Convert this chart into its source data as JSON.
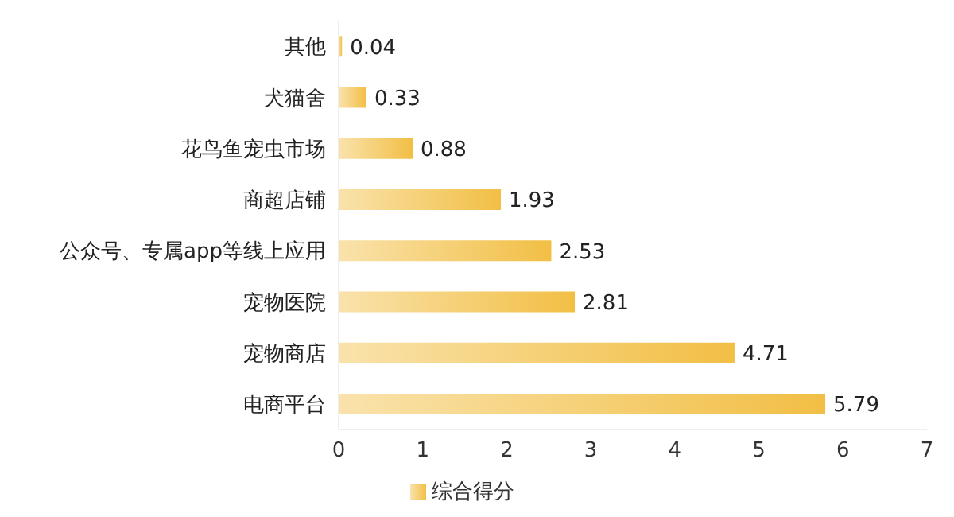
{
  "chart_data": {
    "type": "bar",
    "orientation": "horizontal",
    "categories": [
      "其他",
      "犬猫舍",
      "花鸟鱼宠虫市场",
      "商超店铺",
      "公众号、专属app等线上应用",
      "宠物医院",
      "宠物商店",
      "电商平台"
    ],
    "series": [
      {
        "name": "综合得分",
        "color": "#f2bf45",
        "values": [
          0.04,
          0.33,
          0.88,
          1.93,
          2.53,
          2.81,
          4.71,
          5.79
        ]
      }
    ],
    "xlim": [
      0,
      7
    ],
    "xticks": [
      0,
      1,
      2,
      3,
      4,
      5,
      6,
      7
    ],
    "data_labels": true,
    "grid": false,
    "legend": "bottom"
  }
}
